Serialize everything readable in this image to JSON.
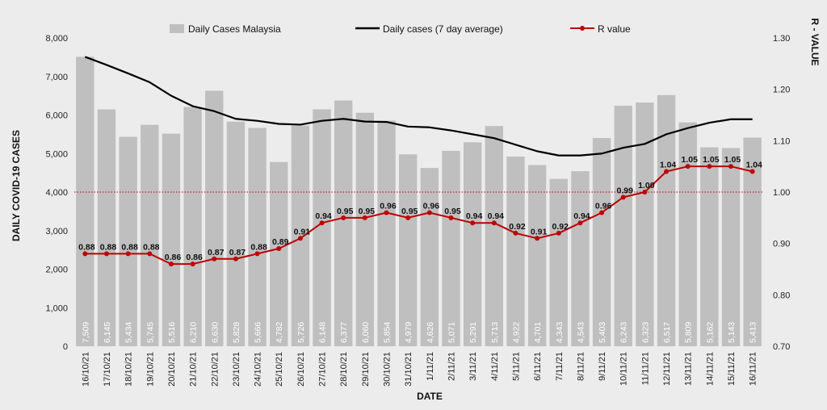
{
  "chart_data": {
    "type": "bar",
    "title": "",
    "xlabel": "DATE",
    "ylabel": "DAILY COVID-19 CASES",
    "y2label": "R - VALUE",
    "ylim": [
      0,
      8000
    ],
    "y2lim": [
      0.7,
      1.3
    ],
    "yticks": [
      "0",
      "1,000",
      "2,000",
      "3,000",
      "4,000",
      "5,000",
      "6,000",
      "7,000",
      "8,000"
    ],
    "y2ticks": [
      "0.70",
      "0.80",
      "0.90",
      "1.00",
      "1.10",
      "1.20",
      "1.30"
    ],
    "reference_line": 1.0,
    "categories": [
      "16/10/21",
      "17/10/21",
      "18/10/21",
      "19/10/21",
      "20/10/21",
      "21/10/21",
      "22/10/21",
      "23/10/21",
      "24/10/21",
      "25/10/21",
      "26/10/21",
      "27/10/21",
      "28/10/21",
      "29/10/21",
      "30/10/21",
      "31/10/21",
      "1/11/21",
      "2/11/21",
      "3/11/21",
      "4/11/21",
      "5/11/21",
      "6/11/21",
      "7/11/21",
      "8/11/21",
      "9/11/21",
      "10/11/21",
      "11/11/21",
      "12/11/21",
      "13/11/21",
      "14/11/21",
      "15/11/21",
      "16/11/21"
    ],
    "series": [
      {
        "name": "Daily Cases Malaysia",
        "type": "bar",
        "color": "#bfbfbf",
        "values": [
          7509,
          6145,
          5434,
          5745,
          5516,
          6210,
          6630,
          5828,
          5666,
          4782,
          5726,
          6148,
          6377,
          6060,
          5854,
          4979,
          4626,
          5071,
          5291,
          5713,
          4922,
          4701,
          4343,
          4543,
          5403,
          6243,
          6323,
          6517,
          5809,
          5162,
          5143,
          5413
        ],
        "labels": [
          "7,509",
          "6,145",
          "5,434",
          "5,745",
          "5,516",
          "6,210",
          "6,630",
          "5,828",
          "5,666",
          "4,782",
          "5,726",
          "6,148",
          "6,377",
          "6,060",
          "5,854",
          "4,979",
          "4,626",
          "5,071",
          "5,291",
          "5,713",
          "4,922",
          "4,701",
          "4,343",
          "4,543",
          "5,403",
          "6,243",
          "6,323",
          "6,517",
          "5,809",
          "5,162",
          "5,143",
          "5,413"
        ]
      },
      {
        "name": "Daily cases (7 day average)",
        "type": "line",
        "color": "#000000",
        "values": [
          7509,
          7300,
          7080,
          6850,
          6500,
          6230,
          6100,
          5900,
          5850,
          5770,
          5750,
          5850,
          5900,
          5830,
          5820,
          5700,
          5680,
          5600,
          5500,
          5400,
          5230,
          5060,
          4950,
          4950,
          5000,
          5150,
          5250,
          5500,
          5660,
          5800,
          5890,
          5890
        ]
      },
      {
        "name": "R value",
        "type": "line",
        "axis": "secondary",
        "color": "#c00000",
        "values": [
          0.88,
          0.88,
          0.88,
          0.88,
          0.86,
          0.86,
          0.87,
          0.87,
          0.88,
          0.89,
          0.91,
          0.94,
          0.95,
          0.95,
          0.96,
          0.95,
          0.96,
          0.95,
          0.94,
          0.94,
          0.92,
          0.91,
          0.92,
          0.94,
          0.96,
          0.99,
          1.0,
          1.04,
          1.05,
          1.05,
          1.05,
          1.04
        ],
        "labels": [
          "0.88",
          "0.88",
          "0.88",
          "0.88",
          "0.86",
          "0.86",
          "0.87",
          "0.87",
          "0.88",
          "0.89",
          "0.91",
          "0.94",
          "0.95",
          "0.95",
          "0.96",
          "0.95",
          "0.96",
          "0.95",
          "0.94",
          "0.94",
          "0.92",
          "0.91",
          "0.92",
          "0.94",
          "0.96",
          "0.99",
          "1.00",
          "1.04",
          "1.05",
          "1.05",
          "1.05",
          "1.04"
        ]
      }
    ],
    "legend_position": "top-center"
  }
}
